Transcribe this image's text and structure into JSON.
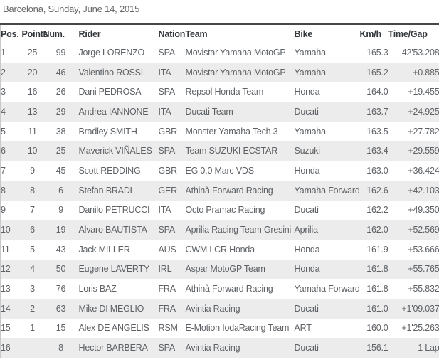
{
  "page_title": "Barcelona, Sunday, June 14, 2015",
  "colors": {
    "stripe_row": "#ececec",
    "top_border": "#474747",
    "left_border": "#c9c9c9",
    "header_text": "#33373b",
    "body_text": "#5d6165",
    "title_text": "#666666"
  },
  "results_table": {
    "columns": [
      "Pos.",
      "Points",
      "Num.",
      "Rider",
      "Nation",
      "Team",
      "Bike",
      "Km/h",
      "Time/Gap"
    ],
    "rows": [
      [
        "1",
        "25",
        "99",
        "Jorge LORENZO",
        "SPA",
        "Movistar Yamaha MotoGP",
        "Yamaha",
        "165.3",
        "42'53.208"
      ],
      [
        "2",
        "20",
        "46",
        "Valentino ROSSI",
        "ITA",
        "Movistar Yamaha MotoGP",
        "Yamaha",
        "165.2",
        "+0.885"
      ],
      [
        "3",
        "16",
        "26",
        "Dani PEDROSA",
        "SPA",
        "Repsol Honda Team",
        "Honda",
        "164.0",
        "+19.455"
      ],
      [
        "4",
        "13",
        "29",
        "Andrea IANNONE",
        "ITA",
        "Ducati Team",
        "Ducati",
        "163.7",
        "+24.925"
      ],
      [
        "5",
        "11",
        "38",
        "Bradley SMITH",
        "GBR",
        "Monster Yamaha Tech 3",
        "Yamaha",
        "163.5",
        "+27.782"
      ],
      [
        "6",
        "10",
        "25",
        "Maverick VIÑALES",
        "SPA",
        "Team SUZUKI ECSTAR",
        "Suzuki",
        "163.4",
        "+29.559"
      ],
      [
        "7",
        "9",
        "45",
        "Scott REDDING",
        "GBR",
        "EG 0,0 Marc VDS",
        "Honda",
        "163.0",
        "+36.424"
      ],
      [
        "8",
        "8",
        "6",
        "Stefan BRADL",
        "GER",
        "Athinà Forward Racing",
        "Yamaha Forward",
        "162.6",
        "+42.103"
      ],
      [
        "9",
        "7",
        "9",
        "Danilo PETRUCCI",
        "ITA",
        "Octo Pramac Racing",
        "Ducati",
        "162.2",
        "+49.350"
      ],
      [
        "10",
        "6",
        "19",
        "Alvaro BAUTISTA",
        "SPA",
        "Aprilia Racing Team Gresini",
        "Aprilia",
        "162.0",
        "+52.569"
      ],
      [
        "11",
        "5",
        "43",
        "Jack MILLER",
        "AUS",
        "CWM LCR Honda",
        "Honda",
        "161.9",
        "+53.666"
      ],
      [
        "12",
        "4",
        "50",
        "Eugene LAVERTY",
        "IRL",
        "Aspar MotoGP Team",
        "Honda",
        "161.8",
        "+55.765"
      ],
      [
        "13",
        "3",
        "76",
        "Loris BAZ",
        "FRA",
        "Athinà Forward Racing",
        "Yamaha Forward",
        "161.8",
        "+55.832"
      ],
      [
        "14",
        "2",
        "63",
        "Mike DI MEGLIO",
        "FRA",
        "Avintia Racing",
        "Ducati",
        "161.0",
        "+1'09.037"
      ],
      [
        "15",
        "1",
        "15",
        "Alex DE ANGELIS",
        "RSM",
        "E-Motion IodaRacing Team",
        "ART",
        "160.0",
        "+1'25.263"
      ],
      [
        "16",
        "",
        "8",
        "Hector BARBERA",
        "SPA",
        "Avintia Racing",
        "Ducati",
        "156.1",
        "1 Lap"
      ]
    ]
  }
}
